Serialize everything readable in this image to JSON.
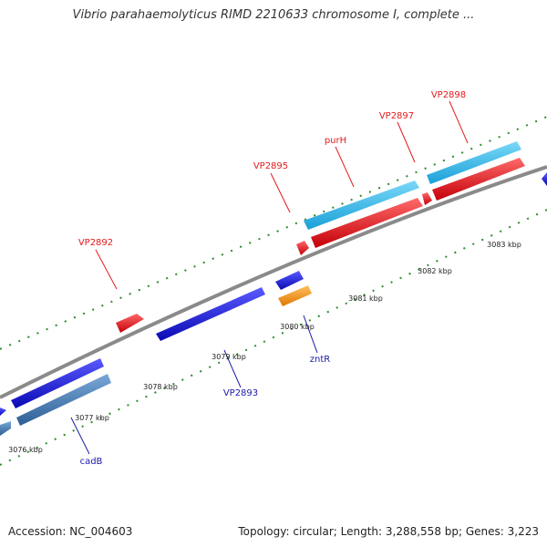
{
  "title": "Vibrio parahaemolyticus RIMD 2210633 chromosome I, complete ...",
  "footer": {
    "accession": "Accession: NC_004603",
    "summary": "Topology: circular; Length: 3,288,558 bp; Genes: 3,223"
  },
  "scale_labels": [
    "3076 kbp",
    "3077 kbp",
    "3078 kbp",
    "3079 kbp",
    "3080 kbp",
    "3081 kbp",
    "3082 kbp",
    "3083 kbp"
  ],
  "gene_labels": {
    "forward": [
      "VP2892",
      "VP2895",
      "purH",
      "VP2897",
      "VP2898"
    ],
    "reverse": [
      "cadB",
      "VP2893",
      "zntR"
    ]
  },
  "colors": {
    "forward_label": "#e41a1c",
    "reverse_label": "#1a1aaa",
    "red_gene": "#e8141c",
    "blue_gene": "#1010d8",
    "cyan_gene": "#38c0ee",
    "steelblue_gene": "#4a82b8",
    "orange_gene": "#f7941d",
    "backbone": "#8a8a8a",
    "tick": "#2e8b2e"
  }
}
